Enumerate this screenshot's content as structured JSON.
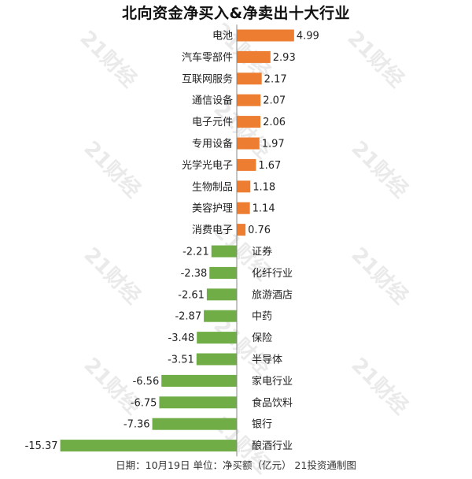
{
  "title": "北向资金净买入&净卖出十大行业",
  "footer": "日期：10月19日 单位：净买额（亿元） 21投资通制图",
  "watermark": "21财经",
  "colors": {
    "positive": "#ED7D31",
    "negative": "#70AD47",
    "axis": "#888888",
    "text": "#222222"
  },
  "chart_data": {
    "type": "bar",
    "orientation": "horizontal",
    "title": "北向资金净买入&净卖出十大行业",
    "unit": "净买额（亿元）",
    "categories": [
      "电池",
      "汽车零部件",
      "互联网服务",
      "通信设备",
      "电子元件",
      "专用设备",
      "光学光电子",
      "生物制品",
      "美容护理",
      "消费电子",
      "证券",
      "化纤行业",
      "旅游酒店",
      "中药",
      "保险",
      "半导体",
      "家电行业",
      "食品饮料",
      "银行",
      "酿酒行业"
    ],
    "values": [
      4.99,
      2.93,
      2.17,
      2.07,
      2.06,
      1.97,
      1.67,
      1.18,
      1.14,
      0.76,
      -2.21,
      -2.38,
      -2.61,
      -2.87,
      -3.48,
      -3.51,
      -6.56,
      -6.75,
      -7.36,
      -15.37
    ],
    "value_labels": [
      "4.99",
      "2.93",
      "2.17",
      "2.07",
      "2.06",
      "1.97",
      "1.67",
      "1.18",
      "1.14",
      "0.76",
      "-2.21",
      "-2.38",
      "-2.61",
      "-2.87",
      "-3.48",
      "-3.51",
      "-6.56",
      "-6.75",
      "-7.36",
      "-15.37"
    ],
    "grid": false,
    "legend": "none"
  }
}
